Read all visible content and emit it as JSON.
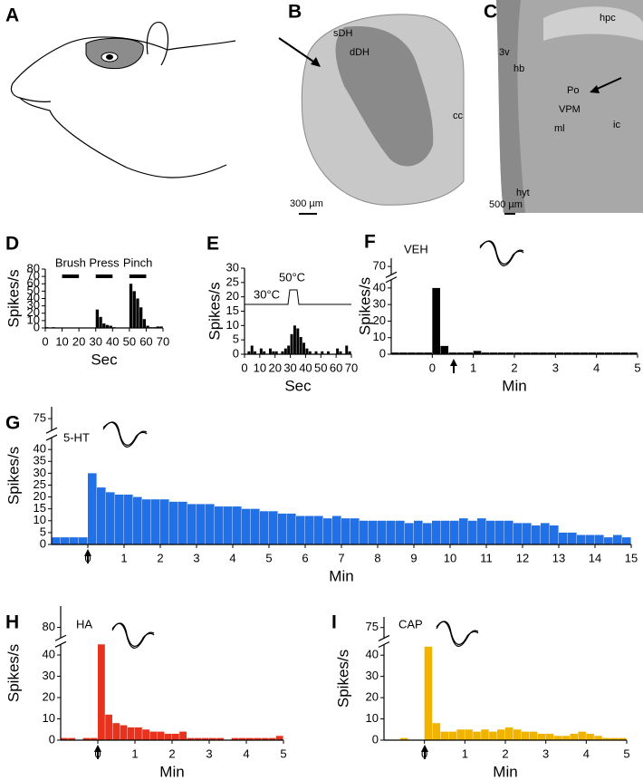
{
  "figure": {
    "panel_a": {
      "letter": "A"
    },
    "panel_b": {
      "letter": "B",
      "labels": [
        "sDH",
        "dDH",
        "cc"
      ],
      "scale_bar": "300 µm"
    },
    "panel_c": {
      "letter": "C",
      "labels": [
        "hpc",
        "3v",
        "hb",
        "Po",
        "VPM",
        "ml",
        "ic",
        "hyt"
      ],
      "scale_bar": "500 µm"
    }
  },
  "chart_data": [
    {
      "type": "histogram",
      "panel": "D",
      "x_label": "Sec",
      "y_label": "Spikes/s",
      "color": "#000000",
      "bins": [
        0,
        2,
        4,
        6,
        8,
        10,
        12,
        14,
        16,
        18,
        20,
        22,
        24,
        26,
        28,
        30,
        32,
        34,
        36,
        38,
        40,
        42,
        44,
        46,
        48,
        50,
        52,
        54,
        56,
        58,
        60,
        62,
        64,
        66,
        68,
        70
      ],
      "values": [
        1,
        0,
        1,
        0,
        0,
        0,
        0,
        0,
        0,
        0,
        0,
        0,
        0,
        0,
        0,
        25,
        15,
        6,
        4,
        3,
        1,
        0,
        0,
        0,
        0,
        60,
        50,
        40,
        28,
        12,
        3,
        1,
        1,
        2,
        2
      ],
      "xlim": [
        0,
        70
      ],
      "xticks": [
        0,
        10,
        20,
        30,
        40,
        50,
        60,
        70
      ],
      "ylim": [
        0,
        80
      ],
      "yticks": [
        0,
        10,
        20,
        30,
        40,
        50,
        60,
        70,
        80
      ],
      "stimuli": [
        {
          "name": "Brush",
          "x": [
            10,
            20
          ]
        },
        {
          "name": "Press",
          "x": [
            30,
            40
          ]
        },
        {
          "name": "Pinch",
          "x": [
            50,
            60
          ]
        }
      ]
    },
    {
      "type": "histogram",
      "panel": "E",
      "x_label": "Sec",
      "y_label": "Spikes/s",
      "color": "#000000",
      "bins": [
        0,
        2,
        4,
        6,
        8,
        10,
        12,
        14,
        16,
        18,
        20,
        22,
        24,
        26,
        28,
        30,
        32,
        34,
        36,
        38,
        40,
        42,
        44,
        46,
        48,
        50,
        52,
        54,
        56,
        58,
        60,
        62,
        64,
        66,
        68,
        70
      ],
      "values": [
        0,
        1,
        3,
        1,
        0,
        2,
        1,
        0,
        2,
        1,
        1,
        0,
        1,
        2,
        3,
        7,
        10,
        9,
        6,
        4,
        2,
        1,
        0,
        1,
        0,
        1,
        0,
        1,
        0,
        0,
        2,
        1,
        0,
        3,
        1
      ],
      "xlim": [
        0,
        70
      ],
      "xticks": [
        0,
        10,
        20,
        30,
        40,
        50,
        60,
        70
      ],
      "ylim": [
        0,
        30
      ],
      "yticks": [
        0,
        5,
        10,
        15,
        20,
        25,
        30
      ],
      "trace_labels": [
        "30°C",
        "50°C"
      ]
    },
    {
      "type": "histogram",
      "panel": "F",
      "label": "VEH",
      "x_label": "Min",
      "y_label": "Spikes/s",
      "color": "#000000",
      "bins": [
        -1,
        -0.8,
        -0.6,
        -0.4,
        -0.2,
        0,
        0.2,
        0.4,
        0.6,
        0.8,
        1,
        1.2,
        1.4,
        1.6,
        1.8,
        2,
        2.2,
        2.4,
        2.6,
        2.8,
        3,
        3.2,
        3.4,
        3.6,
        3.8,
        4,
        4.2,
        4.4,
        4.6,
        4.8,
        5
      ],
      "values": [
        1,
        1,
        1,
        1,
        1,
        40,
        5,
        1,
        1,
        1,
        2,
        1,
        1,
        1,
        1,
        1,
        1,
        1,
        1,
        1,
        1,
        1,
        1,
        1,
        1,
        1,
        1,
        1,
        1,
        1
      ],
      "xlim": [
        -1,
        5
      ],
      "xticks": [
        0,
        1,
        2,
        3,
        4,
        5
      ],
      "ylim": [
        0,
        75
      ],
      "axis_break": [
        45,
        65
      ],
      "yticks": [
        0,
        10,
        20,
        30,
        40,
        70
      ]
    },
    {
      "type": "histogram",
      "panel": "G",
      "label": "5-HT",
      "x_label": "Min",
      "y_label": "Spikes/s",
      "color": "#2070e8",
      "bins": [
        -1,
        -0.75,
        -0.5,
        -0.25,
        0,
        0.25,
        0.5,
        0.75,
        1,
        1.25,
        1.5,
        1.75,
        2,
        2.25,
        2.5,
        2.75,
        3,
        3.25,
        3.5,
        3.75,
        4,
        4.25,
        4.5,
        4.75,
        5,
        5.25,
        5.5,
        5.75,
        6,
        6.25,
        6.5,
        6.75,
        7,
        7.25,
        7.5,
        7.75,
        8,
        8.25,
        8.5,
        8.75,
        9,
        9.25,
        9.5,
        9.75,
        10,
        10.25,
        10.5,
        10.75,
        11,
        11.25,
        11.5,
        11.75,
        12,
        12.25,
        12.5,
        12.75,
        13,
        13.25,
        13.5,
        13.75,
        14,
        14.25,
        14.5,
        14.75,
        15
      ],
      "values": [
        3,
        3,
        3,
        3,
        30,
        24,
        22,
        21,
        21,
        20,
        19,
        19,
        19,
        18,
        18,
        17,
        17,
        17,
        16,
        16,
        16,
        15,
        15,
        14,
        14,
        13,
        13,
        12,
        12,
        12,
        11,
        12,
        11,
        11,
        10,
        10,
        10,
        10,
        10,
        9,
        10,
        9,
        10,
        10,
        10,
        11,
        10,
        11,
        10,
        10,
        10,
        9,
        9,
        8,
        9,
        8,
        5,
        5,
        4,
        4,
        4,
        3,
        4,
        3
      ],
      "xlim": [
        -1,
        15
      ],
      "xticks": [
        0,
        1,
        2,
        3,
        4,
        5,
        6,
        7,
        8,
        9,
        10,
        11,
        12,
        13,
        14,
        15
      ],
      "ylim": [
        0,
        80
      ],
      "axis_break": [
        45,
        70
      ],
      "yticks": [
        0,
        5,
        10,
        15,
        20,
        25,
        30,
        35,
        40,
        75
      ]
    },
    {
      "type": "histogram",
      "panel": "H",
      "label": "HA",
      "x_label": "Min",
      "y_label": "Spikes/s",
      "color": "#e8321e",
      "bins": [
        -1,
        -0.8,
        -0.6,
        -0.4,
        -0.2,
        0,
        0.2,
        0.4,
        0.6,
        0.8,
        1,
        1.2,
        1.4,
        1.6,
        1.8,
        2,
        2.2,
        2.4,
        2.6,
        2.8,
        3,
        3.2,
        3.4,
        3.6,
        3.8,
        4,
        4.2,
        4.4,
        4.6,
        4.8,
        5
      ],
      "values": [
        1,
        1,
        0,
        1,
        1,
        45,
        12,
        8,
        7,
        6,
        6,
        5,
        4,
        4,
        3,
        3,
        4,
        1,
        1,
        1,
        1,
        1,
        0,
        1,
        1,
        1,
        1,
        1,
        1,
        2
      ],
      "xlim": [
        -1,
        5
      ],
      "xticks": [
        0,
        1,
        2,
        3,
        4,
        5
      ],
      "ylim": [
        0,
        90
      ],
      "axis_break": [
        45,
        75
      ],
      "yticks": [
        0,
        10,
        20,
        30,
        40,
        80
      ]
    },
    {
      "type": "histogram",
      "panel": "I",
      "label": "CAP",
      "x_label": "Min",
      "y_label": "Spikes/s",
      "color": "#f0b400",
      "bins": [
        -1,
        -0.8,
        -0.6,
        -0.4,
        -0.2,
        0,
        0.2,
        0.4,
        0.6,
        0.8,
        1,
        1.2,
        1.4,
        1.6,
        1.8,
        2,
        2.2,
        2.4,
        2.6,
        2.8,
        3,
        3.2,
        3.4,
        3.6,
        3.8,
        4,
        4.2,
        4.4,
        4.6,
        4.8,
        5
      ],
      "values": [
        0,
        0,
        1,
        0,
        0,
        44,
        8,
        4,
        4,
        5,
        5,
        4,
        5,
        4,
        5,
        6,
        5,
        4,
        4,
        3,
        3,
        2,
        2,
        3,
        4,
        3,
        2,
        1,
        1,
        1
      ],
      "xlim": [
        -1,
        5
      ],
      "xticks": [
        0,
        1,
        2,
        3,
        4,
        5
      ],
      "ylim": [
        0,
        80
      ],
      "axis_break": [
        45,
        70
      ],
      "yticks": [
        0,
        10,
        20,
        30,
        40,
        75
      ]
    }
  ]
}
